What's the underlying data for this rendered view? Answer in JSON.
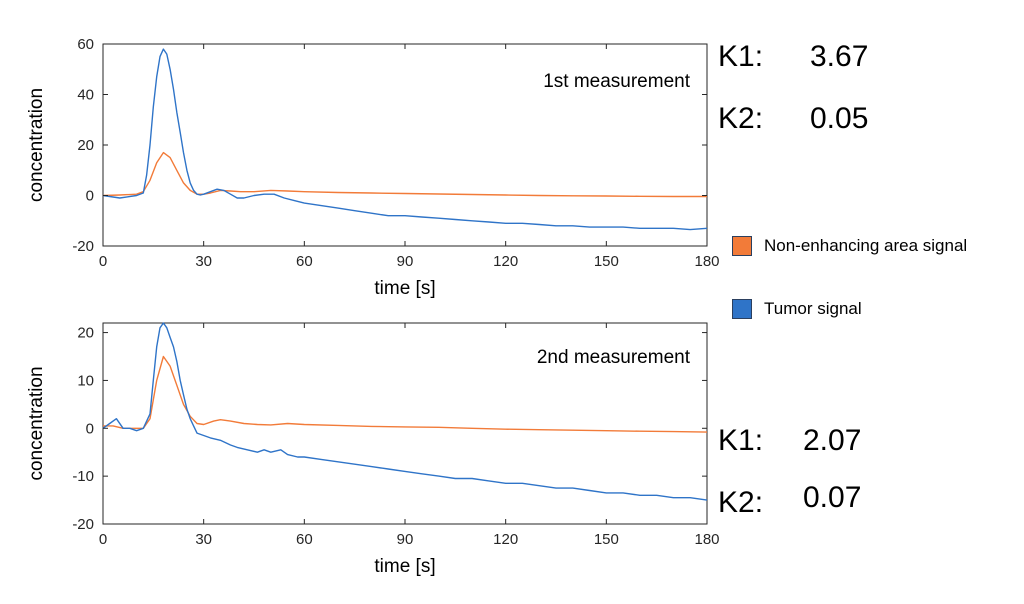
{
  "legend": {
    "items": [
      {
        "label": "Non-enhancing area signal",
        "color": "#F27B39"
      },
      {
        "label": "Tumor signal",
        "color": "#2F74C8"
      }
    ]
  },
  "params": [
    {
      "k1_label": "K1:",
      "k1_value": "3.67",
      "k2_label": "K2:",
      "k2_value": "0.05"
    },
    {
      "k1_label": "K1:",
      "k1_value": "2.07",
      "k2_label": "K2:",
      "k2_value": "0.07"
    }
  ],
  "chart_data": [
    {
      "type": "line",
      "title": "1st measurement",
      "xlabel": "time [s]",
      "ylabel": "concentration",
      "xlim": [
        0,
        180
      ],
      "ylim": [
        -20,
        60
      ],
      "xticks": [
        0,
        30,
        60,
        90,
        120,
        150,
        180
      ],
      "yticks": [
        -20,
        0,
        20,
        40,
        60
      ],
      "series": [
        {
          "name": "Non-enhancing area signal",
          "color": "#F27B39",
          "x": [
            0,
            5,
            10,
            12,
            14,
            16,
            18,
            20,
            22,
            24,
            26,
            28,
            30,
            32,
            35,
            38,
            41,
            45,
            50,
            55,
            60,
            70,
            80,
            90,
            100,
            110,
            120,
            130,
            140,
            150,
            160,
            170,
            180
          ],
          "y": [
            0,
            0.2,
            0.5,
            1.5,
            6,
            13,
            17,
            15,
            10,
            5,
            2,
            0.5,
            0.5,
            1,
            2,
            1.8,
            1.5,
            1.5,
            2,
            1.8,
            1.5,
            1.2,
            1,
            0.8,
            0.6,
            0.4,
            0.2,
            0,
            -0.1,
            -0.2,
            -0.3,
            -0.4,
            -0.4
          ]
        },
        {
          "name": "Tumor signal",
          "color": "#2F74C8",
          "x": [
            0,
            5,
            10,
            12,
            13,
            14,
            15,
            16,
            17,
            18,
            19,
            20,
            21,
            22,
            23,
            24,
            25,
            26,
            27,
            28,
            29,
            30,
            32,
            34,
            36,
            38,
            40,
            42,
            45,
            48,
            51,
            54,
            57,
            60,
            65,
            70,
            75,
            80,
            85,
            90,
            95,
            100,
            105,
            110,
            115,
            120,
            125,
            130,
            135,
            140,
            145,
            150,
            155,
            160,
            165,
            170,
            175,
            180
          ],
          "y": [
            0,
            -1,
            0,
            1,
            8,
            20,
            35,
            47,
            55,
            58,
            56,
            50,
            42,
            33,
            25,
            17,
            10,
            5,
            2,
            0.5,
            0.2,
            0.5,
            1.5,
            2.5,
            2,
            0.5,
            -1,
            -1,
            0,
            0.5,
            0.5,
            -1,
            -2,
            -3,
            -4,
            -5,
            -6,
            -7,
            -8,
            -8,
            -8.5,
            -9,
            -9.5,
            -10,
            -10.5,
            -11,
            -11,
            -11.5,
            -12,
            -12,
            -12.5,
            -12.5,
            -12.5,
            -13,
            -13,
            -13,
            -13.5,
            -13
          ]
        }
      ]
    },
    {
      "type": "line",
      "title": "2nd measurement",
      "xlabel": "time [s]",
      "ylabel": "concentration",
      "xlim": [
        0,
        180
      ],
      "ylim": [
        -20,
        22
      ],
      "xticks": [
        0,
        30,
        60,
        90,
        120,
        150,
        180
      ],
      "yticks": [
        -20,
        -10,
        0,
        10,
        20
      ],
      "series": [
        {
          "name": "Non-enhancing area signal",
          "color": "#F27B39",
          "x": [
            0,
            3,
            6,
            9,
            12,
            14,
            16,
            18,
            20,
            22,
            24,
            26,
            28,
            30,
            33,
            35,
            38,
            42,
            46,
            50,
            55,
            60,
            70,
            80,
            90,
            100,
            110,
            120,
            130,
            140,
            150,
            160,
            170,
            180
          ],
          "y": [
            0.5,
            0.5,
            0,
            0,
            0,
            2,
            10,
            15,
            13,
            9,
            5,
            2.5,
            1,
            0.8,
            1.5,
            1.8,
            1.5,
            1,
            0.8,
            0.7,
            1,
            0.8,
            0.6,
            0.4,
            0.3,
            0.2,
            0,
            -0.2,
            -0.3,
            -0.4,
            -0.5,
            -0.6,
            -0.7,
            -0.8
          ]
        },
        {
          "name": "Tumor signal",
          "color": "#2F74C8",
          "x": [
            0,
            2,
            4,
            6,
            8,
            10,
            12,
            14,
            15,
            16,
            17,
            18,
            19,
            20,
            21,
            22,
            23,
            24,
            25,
            26,
            27,
            28,
            30,
            32,
            35,
            38,
            40,
            43,
            46,
            48,
            50,
            53,
            55,
            58,
            60,
            65,
            70,
            75,
            80,
            85,
            90,
            95,
            100,
            105,
            110,
            115,
            120,
            125,
            130,
            135,
            140,
            145,
            150,
            155,
            160,
            165,
            170,
            175,
            180
          ],
          "y": [
            0,
            1,
            2,
            0,
            0,
            -0.5,
            0,
            3,
            10,
            17,
            21,
            22,
            21,
            19,
            17,
            14,
            10,
            7,
            4,
            2,
            0.5,
            -1,
            -1.5,
            -2,
            -2.5,
            -3.5,
            -4,
            -4.5,
            -5,
            -4.5,
            -5,
            -4.5,
            -5.5,
            -6,
            -6,
            -6.5,
            -7,
            -7.5,
            -8,
            -8.5,
            -9,
            -9.5,
            -10,
            -10.5,
            -10.5,
            -11,
            -11.5,
            -11.5,
            -12,
            -12.5,
            -12.5,
            -13,
            -13.5,
            -13.5,
            -14,
            -14,
            -14.5,
            -14.5,
            -15
          ]
        }
      ]
    }
  ]
}
